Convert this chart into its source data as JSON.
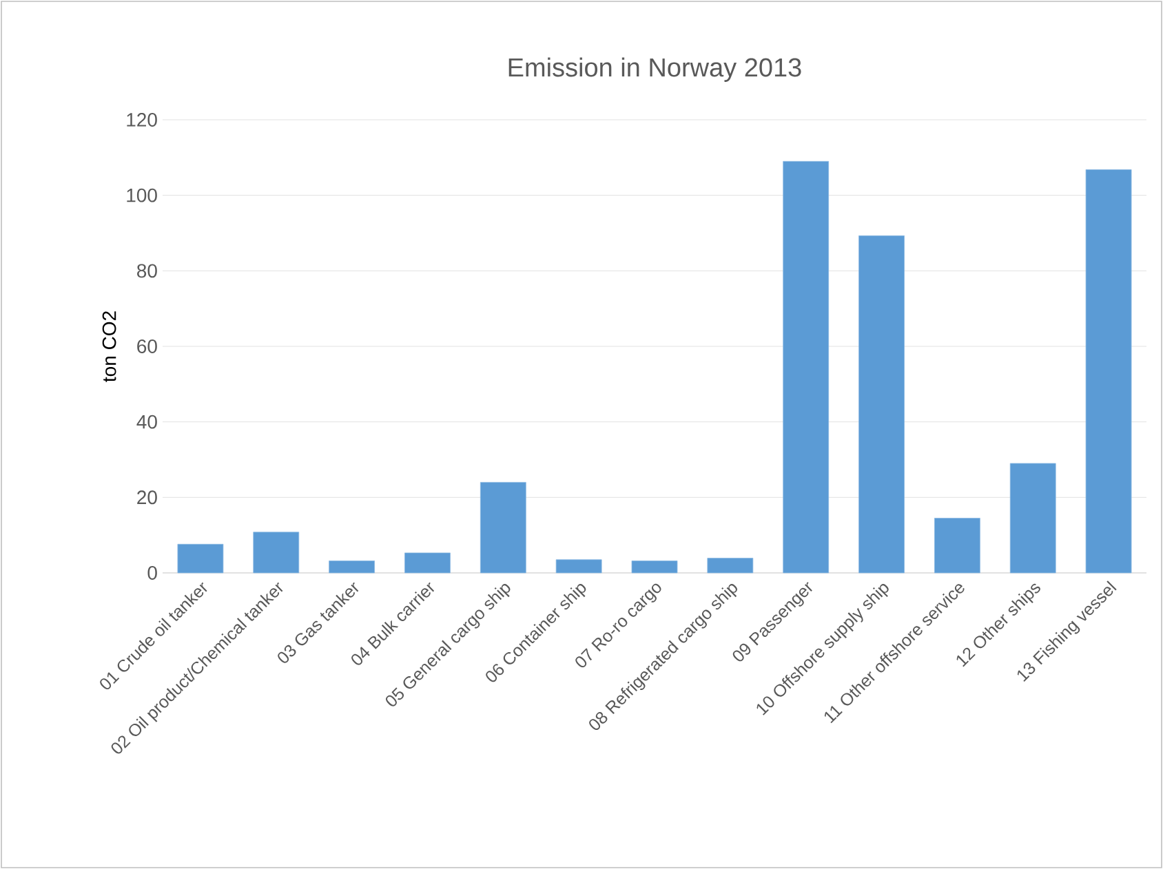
{
  "chart_data": {
    "type": "bar",
    "title": "Emission in Norway 2013",
    "ylabel": "ton CO2",
    "categories": [
      "01 Crude oil tanker",
      "02 Oil product/Chemical tanker",
      "03 Gas tanker",
      "04 Bulk carrier",
      "05 General cargo ship",
      "06 Container ship",
      "07 Ro-ro cargo",
      "08 Refrigerated cargo ship",
      "09 Passenger",
      "10 Offshore supply ship",
      "11 Other offshore service",
      "12 Other ships",
      "13 Fishing vessel"
    ],
    "values": [
      7.6,
      10.8,
      3.2,
      5.3,
      24,
      3.5,
      3.2,
      3.9,
      109,
      89.3,
      14.5,
      29,
      106.8
    ],
    "color": "#5b9bd5",
    "ylim": [
      0,
      120
    ],
    "yticks": [
      0,
      20,
      40,
      60,
      80,
      100,
      120
    ],
    "grid": "y"
  }
}
